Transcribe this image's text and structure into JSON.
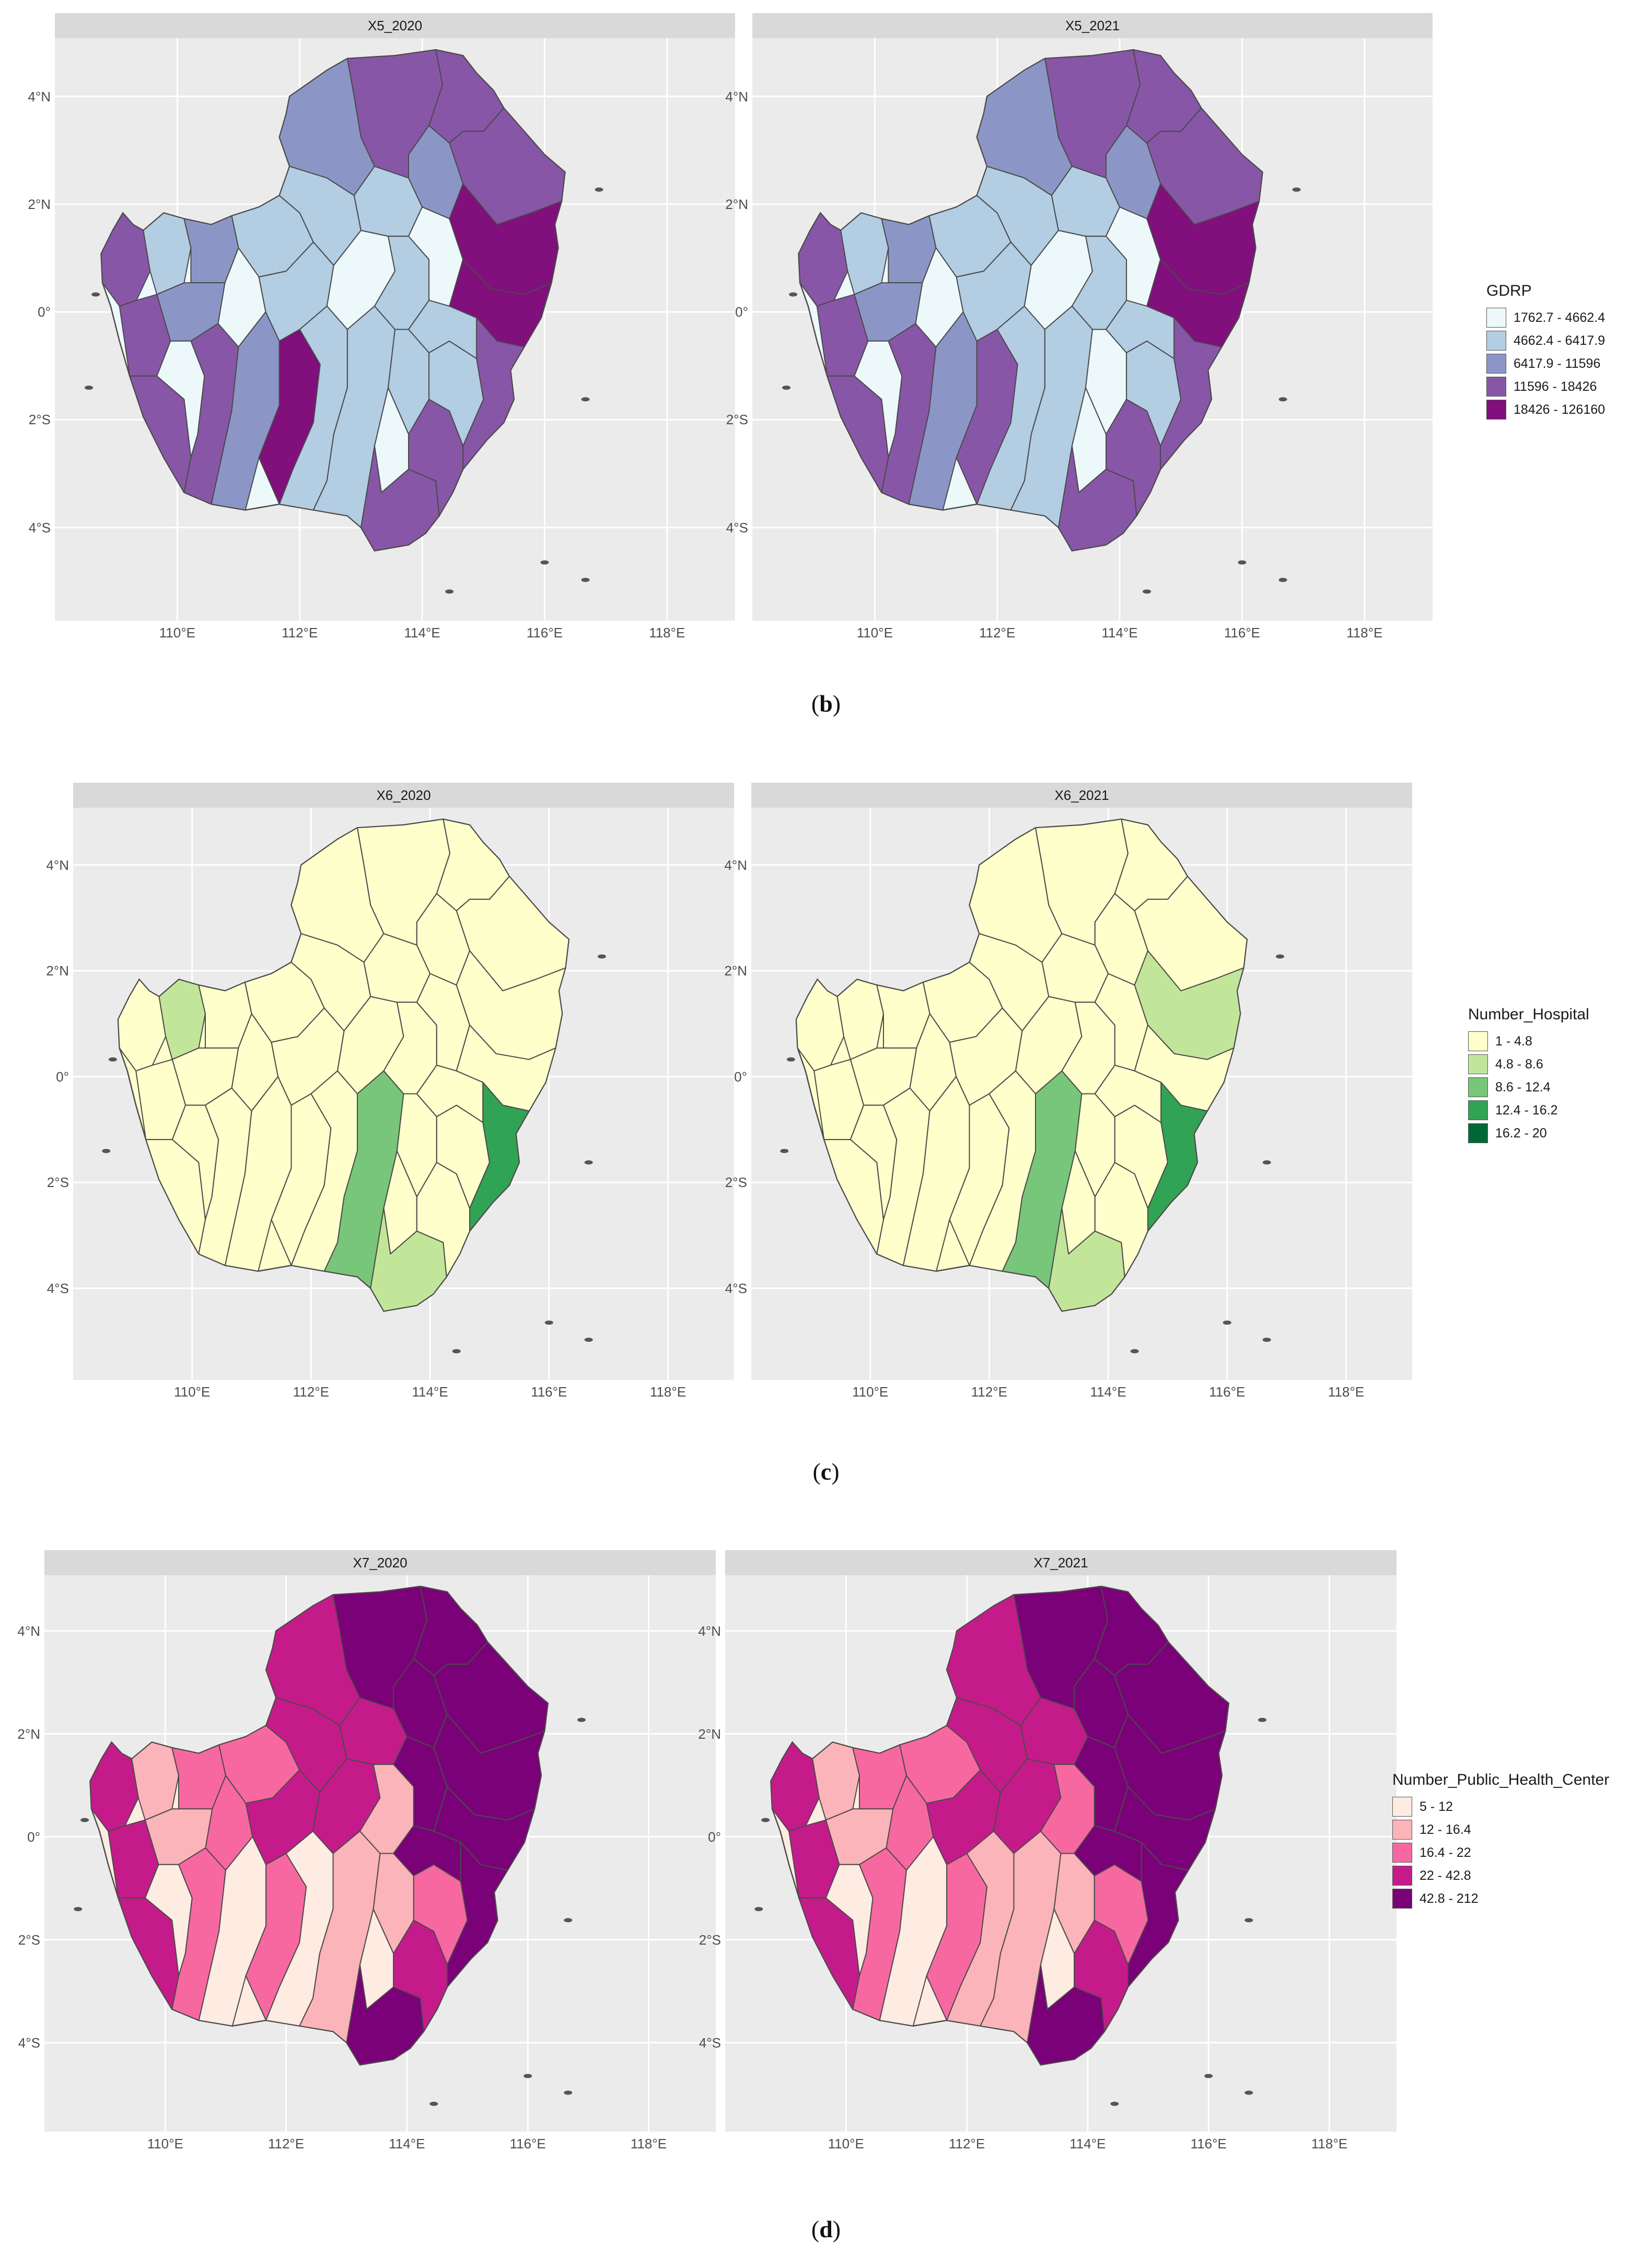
{
  "figures": [
    {
      "id": "b",
      "caption_letter": "b",
      "panels": [
        {
          "title": "X5_2020",
          "variant": 0
        },
        {
          "title": "X5_2021",
          "variant": 1
        }
      ],
      "legend": {
        "title": "GDRP",
        "classes": [
          {
            "label": "1762.7 - 4662.4",
            "color": "#edf8fb"
          },
          {
            "label": "4662.4 - 6417.9",
            "color": "#b3cde3"
          },
          {
            "label": "6417.9 - 11596",
            "color": "#8c96c6"
          },
          {
            "label": "11596 - 18426",
            "color": "#8856a7"
          },
          {
            "label": "18426 - 126160",
            "color": "#810f7c"
          }
        ]
      }
    },
    {
      "id": "c",
      "caption_letter": "c",
      "panels": [
        {
          "title": "X6_2020",
          "variant": 0
        },
        {
          "title": "X6_2021",
          "variant": 1
        }
      ],
      "legend": {
        "title": "Number_Hospital",
        "classes": [
          {
            "label": "1 - 4.8",
            "color": "#ffffcc"
          },
          {
            "label": "4.8 - 8.6",
            "color": "#c2e699"
          },
          {
            "label": "8.6 - 12.4",
            "color": "#78c679"
          },
          {
            "label": "12.4 - 16.2",
            "color": "#31a354"
          },
          {
            "label": "16.2 - 20",
            "color": "#006837"
          }
        ]
      }
    },
    {
      "id": "d",
      "caption_letter": "d",
      "panels": [
        {
          "title": "X7_2020",
          "variant": 0
        },
        {
          "title": "X7_2021",
          "variant": 1
        }
      ],
      "legend": {
        "title": "Number_Public_Health_Center",
        "classes": [
          {
            "label": "5 - 12",
            "color": "#feebe2"
          },
          {
            "label": "12 - 16.4",
            "color": "#fbb4b9"
          },
          {
            "label": "16.4 - 22",
            "color": "#f768a1"
          },
          {
            "label": "22 - 42.8",
            "color": "#c51b8a"
          },
          {
            "label": "42.8 - 212",
            "color": "#7a0177"
          }
        ]
      }
    }
  ],
  "axes": {
    "lat_ticks": [
      "4°N",
      "2°N",
      "0°",
      "2°S",
      "4°S"
    ],
    "lon_ticks": [
      "110°E",
      "112°E",
      "114°E",
      "116°E",
      "118°E"
    ]
  },
  "chart_data": [
    {
      "type": "heatmap",
      "title": "X5_2020",
      "xlabel": "",
      "ylabel": "",
      "legend_title": "GDRP",
      "classes": [
        "1762.7 - 4662.4",
        "4662.4 - 6417.9",
        "6417.9 - 11596",
        "11596 - 18426",
        "18426 - 126160"
      ],
      "x_ticks": [
        "110°E",
        "112°E",
        "114°E",
        "116°E",
        "118°E"
      ],
      "y_ticks": [
        "4°N",
        "2°N",
        "0°",
        "2°S",
        "4°S"
      ],
      "legend_placement": "right",
      "grid": true
    },
    {
      "type": "heatmap",
      "title": "X5_2021",
      "xlabel": "",
      "ylabel": "",
      "legend_title": "GDRP",
      "classes": [
        "1762.7 - 4662.4",
        "4662.4 - 6417.9",
        "6417.9 - 11596",
        "11596 - 18426",
        "18426 - 126160"
      ],
      "x_ticks": [
        "110°E",
        "112°E",
        "114°E",
        "116°E",
        "118°E"
      ],
      "y_ticks": [
        "4°N",
        "2°N",
        "0°",
        "2°S",
        "4°S"
      ],
      "legend_placement": "right",
      "grid": true
    },
    {
      "type": "heatmap",
      "title": "X6_2020",
      "xlabel": "",
      "ylabel": "",
      "legend_title": "Number_Hospital",
      "classes": [
        "1 - 4.8",
        "4.8 - 8.6",
        "8.6 - 12.4",
        "12.4 - 16.2",
        "16.2 - 20"
      ],
      "x_ticks": [
        "110°E",
        "112°E",
        "114°E",
        "116°E",
        "118°E"
      ],
      "y_ticks": [
        "4°N",
        "2°N",
        "0°",
        "2°S",
        "4°S"
      ],
      "legend_placement": "right",
      "grid": true
    },
    {
      "type": "heatmap",
      "title": "X6_2021",
      "xlabel": "",
      "ylabel": "",
      "legend_title": "Number_Hospital",
      "classes": [
        "1 - 4.8",
        "4.8 - 8.6",
        "8.6 - 12.4",
        "12.4 - 16.2",
        "16.2 - 20"
      ],
      "x_ticks": [
        "110°E",
        "112°E",
        "114°E",
        "116°E",
        "118°E"
      ],
      "y_ticks": [
        "4°N",
        "2°N",
        "0°",
        "2°S",
        "4°S"
      ],
      "legend_placement": "right",
      "grid": true
    },
    {
      "type": "heatmap",
      "title": "X7_2020",
      "xlabel": "",
      "ylabel": "",
      "legend_title": "Number_Public_Health_Center",
      "classes": [
        "5 - 12",
        "12 - 16.4",
        "16.4 - 22",
        "22 - 42.8",
        "42.8 - 212"
      ],
      "x_ticks": [
        "110°E",
        "112°E",
        "114°E",
        "116°E",
        "118°E"
      ],
      "y_ticks": [
        "4°N",
        "2°N",
        "0°",
        "2°S",
        "4°S"
      ],
      "legend_placement": "right",
      "grid": true
    },
    {
      "type": "heatmap",
      "title": "X7_2021",
      "xlabel": "",
      "ylabel": "",
      "legend_title": "Number_Public_Health_Center",
      "classes": [
        "5 - 12",
        "12 - 16.4",
        "16.4 - 22",
        "22 - 42.8",
        "42.8 - 212"
      ],
      "x_ticks": [
        "110°E",
        "112°E",
        "114°E",
        "116°E",
        "118°E"
      ],
      "y_ticks": [
        "4°N",
        "2°N",
        "0°",
        "2°S",
        "4°S"
      ],
      "legend_placement": "right",
      "grid": true
    }
  ]
}
